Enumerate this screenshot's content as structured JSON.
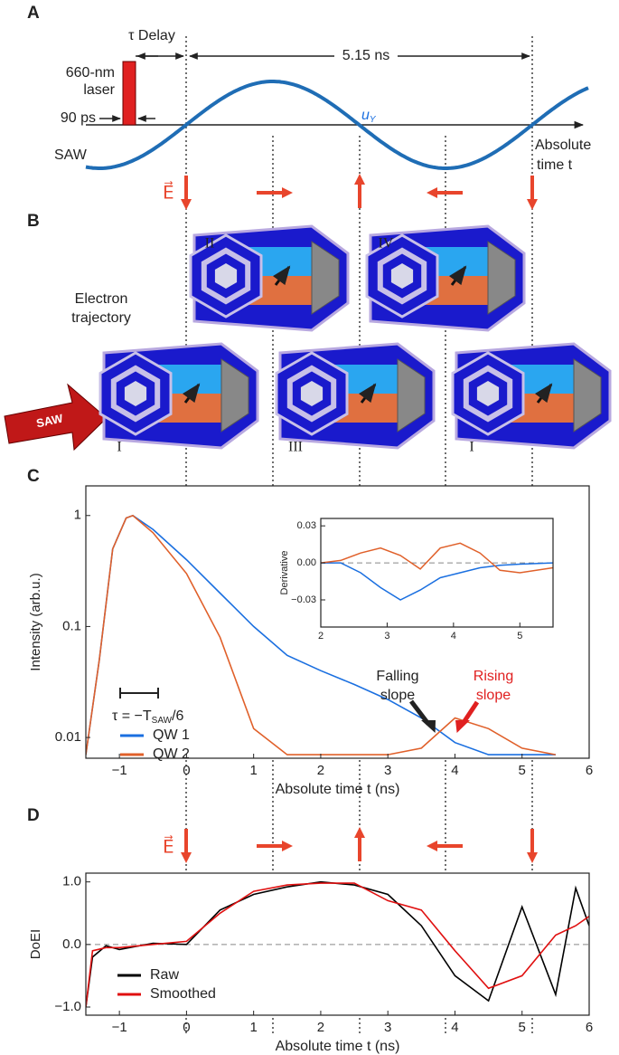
{
  "panel_labels": [
    "A",
    "B",
    "C",
    "D"
  ],
  "panel_a": {
    "laser": [
      "660-nm",
      "laser"
    ],
    "pulse_width": "90 ps",
    "delay": "τ Delay",
    "period": "5.15 ns",
    "wave": "SAW",
    "u_label": {
      "main": "u",
      "sub": "Y"
    },
    "time_axis": [
      "Absolute",
      "time t"
    ],
    "field": "E⃗"
  },
  "panel_b": {
    "caption": [
      "Electron",
      "trajectory"
    ],
    "stages": [
      "II",
      "IV",
      "I",
      "III",
      "I"
    ],
    "saw_arrow": "SAW"
  },
  "panel_d_field": "E⃗",
  "chart_data": [
    {
      "type": "line",
      "ylabel": "Intensity (arb.u.)",
      "xlabel": "Absolute time t (ns)",
      "log_y": true,
      "xlim": [
        -1.5,
        6
      ],
      "ylim": [
        0.0065,
        1.85
      ],
      "xticks": [
        {
          "value": -1,
          "label": "−1"
        },
        0,
        1,
        2,
        3,
        4,
        5,
        6
      ],
      "yticks": [
        0.01,
        0.1,
        1
      ],
      "x": [
        -1.5,
        -1.3,
        -1.1,
        -0.9,
        -0.8,
        -0.5,
        0,
        0.5,
        1,
        1.5,
        2,
        2.5,
        3,
        3.5,
        4,
        4.5,
        5,
        5.5
      ],
      "series": [
        {
          "name": "QW 1",
          "color": "#1a6fe0",
          "values": [
            0.007,
            0.05,
            0.5,
            0.95,
            1,
            0.75,
            0.4,
            0.2,
            0.1,
            0.055,
            0.04,
            0.03,
            0.022,
            0.015,
            0.009,
            0.007,
            0.007,
            0.007
          ]
        },
        {
          "name": "QW 2",
          "color": "#e0602a",
          "values": [
            0.007,
            0.05,
            0.5,
            0.95,
            1,
            0.7,
            0.3,
            0.08,
            0.012,
            0.007,
            0.007,
            0.007,
            0.007,
            0.008,
            0.015,
            0.012,
            0.008,
            0.007
          ]
        }
      ],
      "scale_bar_note": {
        "text": "τ = −T",
        "sub": "SAW",
        "tail": "/6"
      },
      "annotations": [
        {
          "text": [
            "Falling",
            "slope"
          ],
          "color": "#222222"
        },
        {
          "text": [
            "Rising",
            "slope"
          ],
          "color": "#e02020"
        }
      ]
    },
    {
      "type": "line",
      "ylabel": "Derivative",
      "xlim": [
        2,
        5.5
      ],
      "ylim": [
        -0.052,
        0.036
      ],
      "xticks": [
        2,
        3,
        4,
        5
      ],
      "yticks": [
        {
          "value": -0.03,
          "label": "−0.03"
        },
        {
          "value": 0,
          "label": "0.00"
        },
        0.03
      ],
      "zero_line": true,
      "x": [
        2,
        2.3,
        2.6,
        2.9,
        3.2,
        3.5,
        3.8,
        4.1,
        4.4,
        4.7,
        5,
        5.5
      ],
      "series": [
        {
          "color": "#1a6fe0",
          "values": [
            0,
            0,
            -0.008,
            -0.02,
            -0.03,
            -0.022,
            -0.012,
            -0.008,
            -0.004,
            -0.002,
            -0.001,
            0
          ]
        },
        {
          "color": "#e0602a",
          "values": [
            0,
            0.002,
            0.008,
            0.012,
            0.006,
            -0.005,
            0.012,
            0.016,
            0.008,
            -0.006,
            -0.008,
            -0.004
          ]
        }
      ]
    },
    {
      "type": "line",
      "ylabel": "DoEI",
      "xlabel": "Absolute time t (ns)",
      "xlim": [
        -1.5,
        6
      ],
      "ylim": [
        -1.13,
        1.14
      ],
      "xticks": [
        {
          "value": -1,
          "label": "−1"
        },
        0,
        1,
        2,
        3,
        4,
        5,
        6
      ],
      "yticks": [
        {
          "value": -1,
          "label": "−1.0"
        },
        {
          "value": 0,
          "label": "0.0"
        },
        {
          "value": 1,
          "label": "1.0"
        }
      ],
      "zero_line": true,
      "x": [
        -1.5,
        -1.4,
        -1.2,
        -1,
        -0.5,
        0,
        0.5,
        1,
        1.5,
        2,
        2.5,
        3,
        3.5,
        4,
        4.5,
        5,
        5.5,
        5.8,
        6
      ],
      "series": [
        {
          "name": "Raw",
          "color": "#000000",
          "values": [
            -1.0,
            -0.2,
            -0.02,
            -0.08,
            0.02,
            0.0,
            0.55,
            0.8,
            0.92,
            1.0,
            0.95,
            0.8,
            0.3,
            -0.5,
            -0.9,
            0.6,
            -0.8,
            0.9,
            0.3
          ]
        },
        {
          "name": "Smoothed",
          "color": "#e01010",
          "values": [
            -1.0,
            -0.1,
            -0.05,
            -0.05,
            0,
            0.05,
            0.5,
            0.85,
            0.95,
            0.98,
            0.98,
            0.7,
            0.55,
            -0.1,
            -0.7,
            -0.5,
            0.15,
            0.3,
            0.45
          ]
        }
      ]
    }
  ]
}
